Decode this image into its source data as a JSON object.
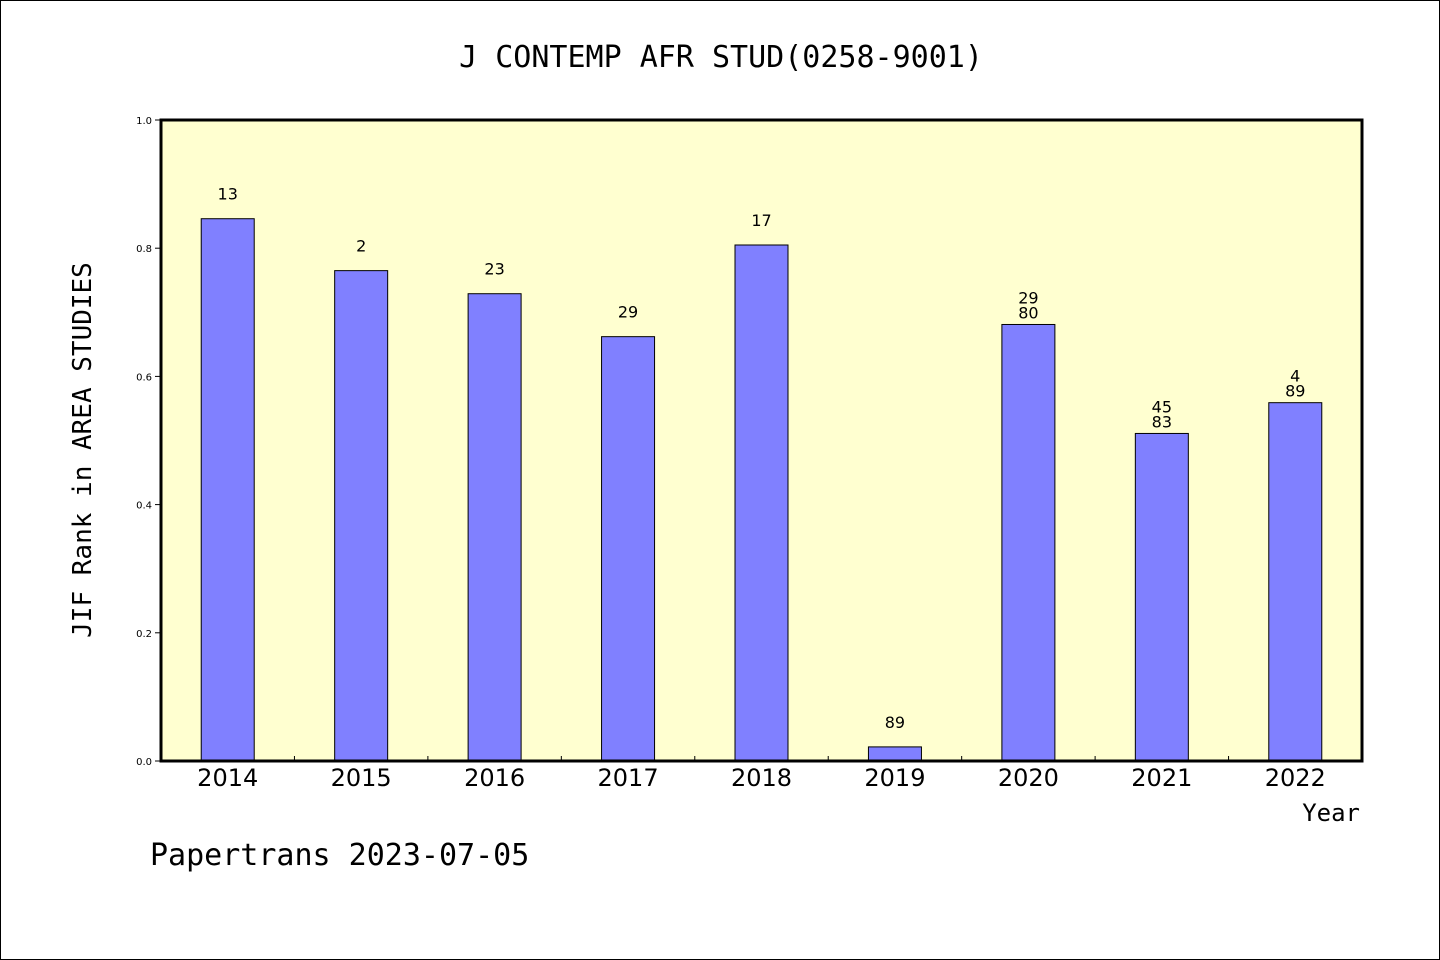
{
  "chart_data": {
    "type": "bar",
    "title": "J CONTEMP AFR STUD(0258-9001)",
    "ylabel": "JIF Rank in AREA STUDIES",
    "xlabel": "Year",
    "categories": [
      "2014",
      "2015",
      "2016",
      "2017",
      "2018",
      "2019",
      "2020",
      "2021",
      "2022"
    ],
    "values": [
      0.846,
      0.765,
      0.729,
      0.662,
      0.805,
      0.022,
      0.681,
      0.511,
      0.559
    ],
    "data_labels": [
      [
        "13"
      ],
      [
        "2"
      ],
      [
        "23"
      ],
      [
        "29"
      ],
      [
        "17"
      ],
      [
        "89"
      ],
      [
        "29",
        "80"
      ],
      [
        "45",
        "83"
      ],
      [
        "4",
        "89"
      ]
    ],
    "ylim": [
      0,
      1.0
    ],
    "yticks": [
      "0.0",
      "0.2",
      "0.4",
      "0.6",
      "0.8",
      "1.0"
    ],
    "grid": false,
    "colors": {
      "bar": "#8080ff",
      "plot_background": "#ffffd0",
      "axis": "#000000"
    }
  },
  "footer": "Papertrans 2023-07-05"
}
